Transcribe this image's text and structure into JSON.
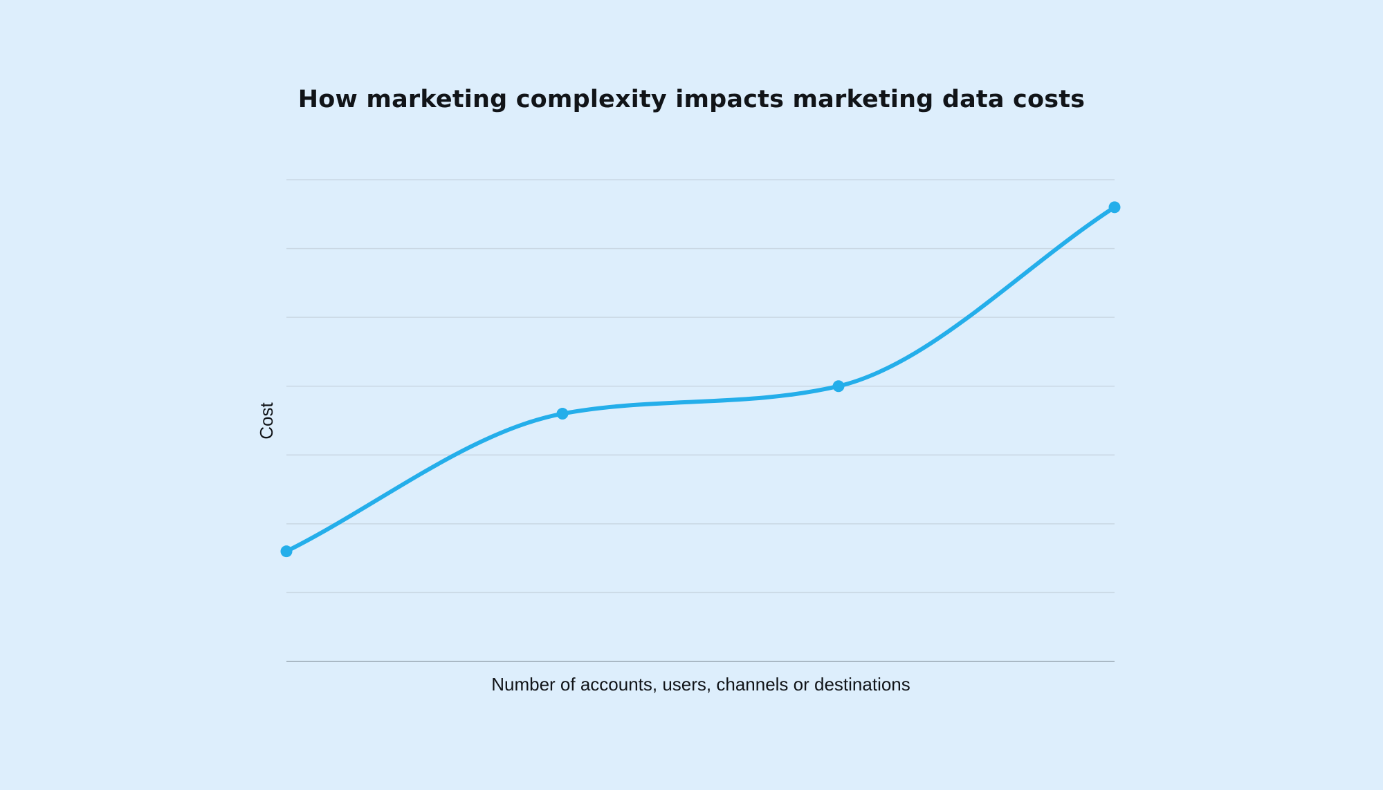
{
  "colors": {
    "background": "#ddeefc",
    "line": "#24aeea",
    "grid": "#c9d7e3",
    "axis": "#a9b8c4",
    "text": "#111418"
  },
  "chart_data": {
    "type": "line",
    "title": "How marketing complexity impacts marketing data costs",
    "xlabel": "Number of accounts, users, channels or destinations",
    "ylabel": "Cost",
    "ylim": [
      0,
      7
    ],
    "xlim": [
      0,
      3
    ],
    "grid": true,
    "legend": "none",
    "series": [
      {
        "x": [
          0,
          1,
          2,
          3
        ],
        "y": [
          1.6,
          3.6,
          4.0,
          6.6
        ]
      }
    ]
  }
}
